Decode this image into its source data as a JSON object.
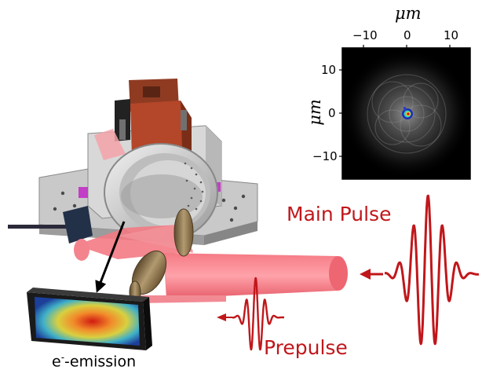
{
  "labels": {
    "main_pulse": "Main Pulse",
    "prepulse": "Prepulse",
    "emission_prefix": "e",
    "emission_sup": "-",
    "emission_suffix": "-emission"
  },
  "inset": {
    "x_axis_label": "μm",
    "y_axis_label": "μm",
    "x_ticks": [
      "−10",
      "0",
      "10"
    ],
    "y_ticks": [
      "10",
      "0",
      "−10"
    ],
    "colormap": "grayscale with jet core"
  },
  "colors": {
    "laser_red": "#c0171b",
    "beam_pink": "#f06470",
    "mount_red": "#8f3b22"
  }
}
